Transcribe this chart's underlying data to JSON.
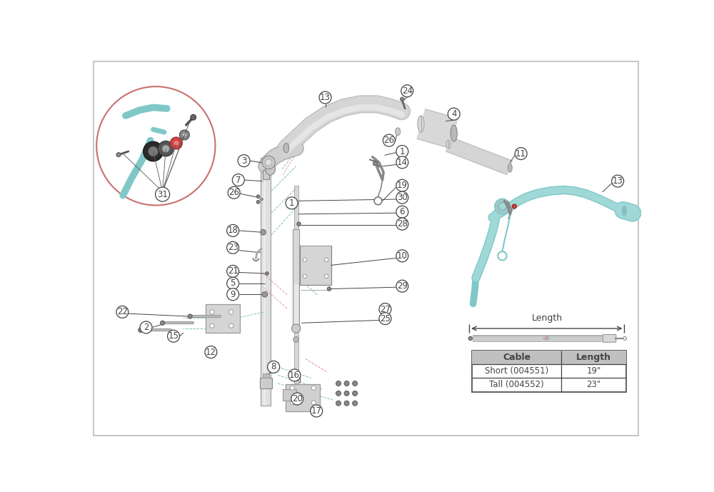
{
  "background_color": "#ffffff",
  "border_color": "#cccccc",
  "line_color": "#444444",
  "detail_circle_color": "#c97070",
  "teal_color": "#80c8c8",
  "teal_light": "#a0d8d8",
  "gray_part": "#c8c8c8",
  "gray_dark": "#888888",
  "gray_mid": "#aaaaaa",
  "pink_dashed": "#e09090",
  "table_header_bg": "#c0c0c0",
  "table_border": "#444444",
  "cable_data": [
    {
      "name": "Short (004551)",
      "length": "19\""
    },
    {
      "name": "Tall (004552)",
      "length": "23\""
    }
  ],
  "figsize": [
    10.0,
    6.89
  ],
  "dpi": 100
}
